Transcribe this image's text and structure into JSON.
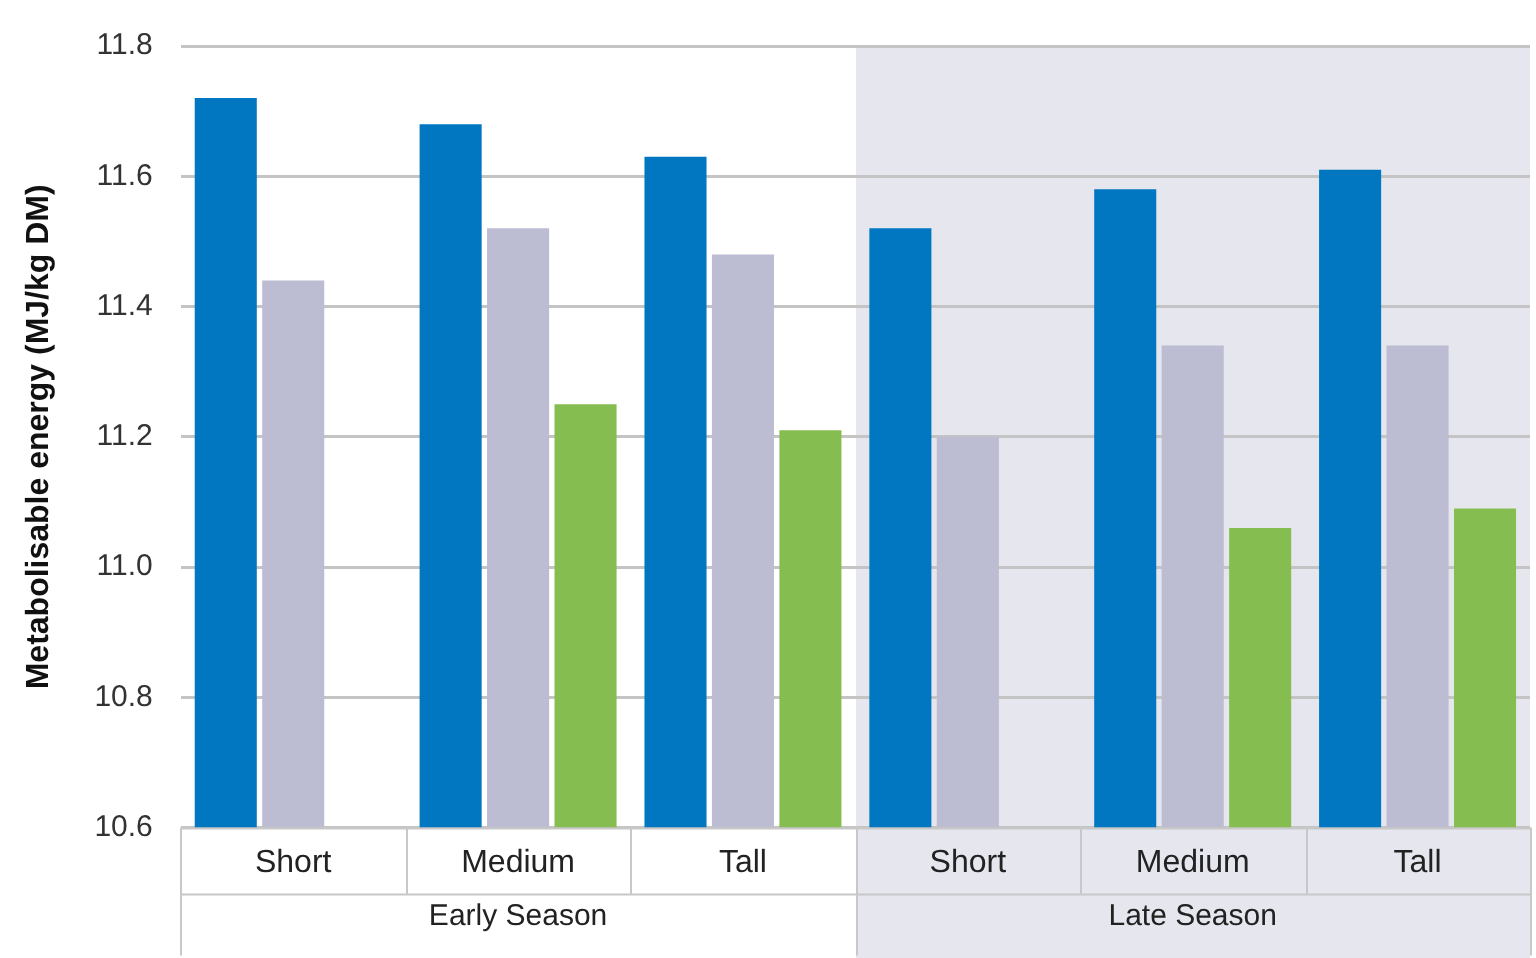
{
  "chart_data": {
    "type": "bar",
    "ylabel": "Metabolisable energy (MJ/kg DM)",
    "categories": [
      "Short",
      "Medium",
      "Tall",
      "Short",
      "Medium",
      "Tall"
    ],
    "series": [
      {
        "color": "#0077c0",
        "values": [
          11.72,
          11.68,
          11.63,
          11.52,
          11.58,
          11.61
        ]
      },
      {
        "color": "#bcbcd2",
        "values": [
          11.44,
          11.52,
          11.48,
          11.2,
          11.34,
          11.34
        ]
      },
      {
        "color": "#86bd50",
        "values": [
          null,
          11.25,
          11.21,
          null,
          11.06,
          11.09
        ]
      }
    ],
    "ylim": [
      10.6,
      11.8
    ],
    "yticks": [
      10.6,
      10.8,
      {
        "value": 11.0,
        "label": "11.0"
      },
      11.2,
      11.4,
      11.6,
      11.8
    ],
    "grid": "y",
    "legend": false,
    "annotations": [
      "Early Season",
      "Late Season"
    ]
  }
}
